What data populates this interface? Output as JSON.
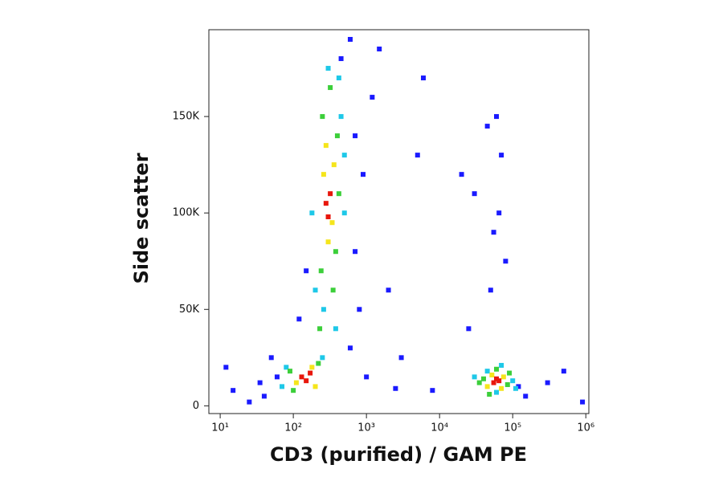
{
  "chart_data": {
    "type": "scatter",
    "x_label": "CD3 (purified) / GAM PE",
    "y_label": "Side scatter",
    "xscale": "log",
    "xlim": [
      7,
      1100000
    ],
    "ylim": [
      -4000,
      195000
    ],
    "xticks": [
      {
        "value": 10,
        "label": "10¹"
      },
      {
        "value": 100,
        "label": "10²"
      },
      {
        "value": 1000,
        "label": "10³"
      },
      {
        "value": 10000,
        "label": "10⁴"
      },
      {
        "value": 100000,
        "label": "10⁵"
      },
      {
        "value": 1000000,
        "label": "10⁶"
      }
    ],
    "yticks": [
      0,
      {
        "value": 50000,
        "label": "50K"
      },
      {
        "value": 100000,
        "label": "100K"
      },
      {
        "value": 150000,
        "label": "150K"
      }
    ],
    "series": [
      {
        "color": "#1a1aff",
        "x": [
          40,
          50,
          60,
          35,
          25,
          600,
          700,
          900,
          1200,
          1500,
          800,
          1000,
          2000,
          3000,
          5000,
          8000,
          20000,
          25000,
          30000,
          45000,
          50000,
          55000,
          60000,
          65000,
          70000,
          80000,
          120000,
          150000,
          15,
          12,
          300000,
          500000,
          900000,
          600,
          450,
          150,
          120,
          700,
          2500,
          6000
        ],
        "values": [
          5000,
          25000,
          15000,
          12000,
          2000,
          30000,
          80000,
          120000,
          160000,
          185000,
          50000,
          15000,
          60000,
          25000,
          130000,
          8000,
          120000,
          40000,
          110000,
          145000,
          60000,
          90000,
          150000,
          100000,
          130000,
          75000,
          10000,
          5000,
          8000,
          20000,
          12000,
          18000,
          2000,
          190000,
          180000,
          70000,
          45000,
          140000,
          9000,
          170000
        ]
      },
      {
        "color": "#1ec8e8",
        "x": [
          70,
          80,
          250,
          260,
          450,
          500,
          200,
          180,
          300,
          420,
          380,
          500,
          30000,
          100000,
          70000,
          45000,
          110000,
          60000
        ],
        "values": [
          10000,
          20000,
          25000,
          50000,
          150000,
          100000,
          60000,
          100000,
          175000,
          170000,
          40000,
          130000,
          15000,
          13000,
          21000,
          18000,
          9000,
          7000
        ]
      },
      {
        "color": "#3ccf3a",
        "x": [
          90,
          100,
          220,
          240,
          400,
          380,
          420,
          250,
          230,
          350,
          320,
          40000,
          85000,
          60000,
          48000,
          90000,
          35000
        ],
        "values": [
          18000,
          8000,
          22000,
          70000,
          140000,
          80000,
          110000,
          150000,
          40000,
          60000,
          165000,
          14000,
          11000,
          19000,
          6000,
          17000,
          12000
        ]
      },
      {
        "color": "#f5e51b",
        "x": [
          110,
          180,
          200,
          260,
          340,
          360,
          300,
          280,
          45000,
          75000,
          52000,
          70000
        ],
        "values": [
          12000,
          20000,
          10000,
          120000,
          95000,
          125000,
          85000,
          135000,
          10000,
          15000,
          16000,
          9000
        ]
      },
      {
        "color": "#e8160c",
        "x": [
          130,
          150,
          170,
          280,
          320,
          300,
          55000,
          65000,
          60000
        ],
        "values": [
          15000,
          13000,
          17000,
          105000,
          110000,
          98000,
          12000,
          13000,
          14000
        ]
      }
    ]
  }
}
